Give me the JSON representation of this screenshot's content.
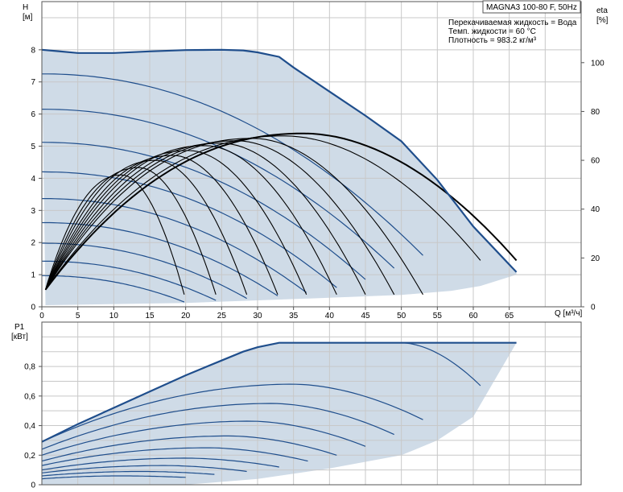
{
  "chart_data": [
    {
      "type": "line",
      "title": "MAGNA3 100-80 F, 50Hz",
      "info_lines": [
        "Перекачиваемая жидкость = Вода",
        "Темп. жидкости = 60 °C",
        "Плотность = 983.2 кг/м³"
      ],
      "ylabel": "H",
      "yunit": "[м]",
      "y2label": "eta",
      "y2unit": "[%]",
      "xlabel": "Q [м³/ч]",
      "xlim": [
        0,
        75
      ],
      "ylim": [
        0,
        9.5
      ],
      "y2lim": [
        0,
        125
      ],
      "xticks": [
        "0",
        "5",
        "10",
        "15",
        "20",
        "25",
        "30",
        "35",
        "40",
        "45",
        "50",
        "55",
        "60",
        "65"
      ],
      "yticks": [
        "0",
        "1",
        "2",
        "3",
        "4",
        "5",
        "6",
        "7",
        "8"
      ],
      "y2ticks": [
        "0",
        "20",
        "40",
        "60",
        "80",
        "100"
      ],
      "grid": true,
      "colors": {
        "curve": "#1f4e8c",
        "envelope": "#1f4e8c",
        "fill": "#cfdbe7",
        "eta": "#000000",
        "grid": "#c8c8c8"
      },
      "envelope_max": {
        "x": [
          0,
          2,
          5,
          10,
          15,
          20,
          25,
          28,
          30,
          33,
          35,
          40,
          45,
          50,
          55,
          60,
          66
        ],
        "y": [
          8.0,
          7.96,
          7.9,
          7.9,
          7.95,
          7.99,
          8.0,
          7.98,
          7.92,
          7.78,
          7.45,
          6.7,
          5.95,
          5.15,
          3.95,
          2.5,
          1.08
        ]
      },
      "envelope_min": {
        "x": [
          0.5,
          20,
          30,
          40,
          50,
          57,
          61,
          66
        ],
        "y": [
          0.05,
          0.12,
          0.2,
          0.28,
          0.37,
          0.5,
          0.65,
          1.0
        ]
      },
      "series": [
        {
          "h0": 7.25,
          "q_end": 53.0,
          "h_end": 1.6
        },
        {
          "h0": 6.15,
          "q_end": 49.0,
          "h_end": 1.2
        },
        {
          "h0": 5.12,
          "q_end": 45.0,
          "h_end": 0.85
        },
        {
          "h0": 4.2,
          "q_end": 41.0,
          "h_end": 0.6
        },
        {
          "h0": 3.37,
          "q_end": 36.8,
          "h_end": 0.44
        },
        {
          "h0": 2.62,
          "q_end": 32.8,
          "h_end": 0.34
        },
        {
          "h0": 1.98,
          "q_end": 28.5,
          "h_end": 0.26
        },
        {
          "h0": 1.42,
          "q_end": 24.2,
          "h_end": 0.2
        },
        {
          "h0": 0.97,
          "q_end": 19.8,
          "h_end": 0.15
        }
      ],
      "eta_curves": [
        {
          "q_end": 66.0,
          "peak": 71
        },
        {
          "q_end": 61.0,
          "peak": 70
        },
        {
          "q_end": 53.0,
          "peak": 69
        },
        {
          "q_end": 49.0,
          "peak": 68
        },
        {
          "q_end": 45.0,
          "peak": 67
        },
        {
          "q_end": 41.0,
          "peak": 66
        },
        {
          "q_end": 36.8,
          "peak": 64
        },
        {
          "q_end": 32.8,
          "peak": 62
        },
        {
          "q_end": 28.5,
          "peak": 60
        },
        {
          "q_end": 24.2,
          "peak": 57
        },
        {
          "q_end": 19.8,
          "peak": 54
        }
      ]
    },
    {
      "type": "line",
      "ylabel": "P1",
      "yunit": "[кВт]",
      "xlim": [
        0,
        75
      ],
      "ylim": [
        0,
        1.1
      ],
      "yticks": [
        "0",
        "0,2",
        "0,4",
        "0,6",
        "0,8"
      ],
      "grid": true,
      "envelope_max": {
        "x": [
          0,
          5,
          10,
          15,
          20,
          25,
          28,
          30,
          33,
          50,
          55,
          66
        ],
        "y": [
          0.29,
          0.41,
          0.52,
          0.63,
          0.74,
          0.84,
          0.9,
          0.93,
          0.96,
          0.96,
          0.96,
          0.96
        ]
      },
      "envelope_min": {
        "x": [
          0,
          10,
          20,
          30,
          40,
          50,
          55,
          60,
          66
        ],
        "y": [
          0.0,
          0.0,
          0.0,
          0.04,
          0.11,
          0.2,
          0.3,
          0.46,
          0.96
        ]
      },
      "series": [
        {
          "p0": 0.96,
          "q_mid": 50.0,
          "p_mid": 0.96,
          "q_end": 61.0,
          "p_end": 0.67
        },
        {
          "p0": 0.29,
          "q_mid": 35.0,
          "p_mid": 0.68,
          "q_end": 53.0,
          "p_end": 0.44
        },
        {
          "p0": 0.24,
          "q_mid": 32.0,
          "p_mid": 0.55,
          "q_end": 49.0,
          "p_end": 0.34
        },
        {
          "p0": 0.2,
          "q_mid": 29.0,
          "p_mid": 0.43,
          "q_end": 45.0,
          "p_end": 0.26
        },
        {
          "p0": 0.16,
          "q_mid": 26.0,
          "p_mid": 0.33,
          "q_end": 41.0,
          "p_end": 0.2
        },
        {
          "p0": 0.13,
          "q_mid": 23.0,
          "p_mid": 0.25,
          "q_end": 37.0,
          "p_end": 0.16
        },
        {
          "p0": 0.1,
          "q_mid": 20.0,
          "p_mid": 0.18,
          "q_end": 33.0,
          "p_end": 0.12
        },
        {
          "p0": 0.08,
          "q_mid": 17.0,
          "p_mid": 0.13,
          "q_end": 28.5,
          "p_end": 0.09
        },
        {
          "p0": 0.06,
          "q_mid": 14.0,
          "p_mid": 0.09,
          "q_end": 24.0,
          "p_end": 0.07
        },
        {
          "p0": 0.04,
          "q_mid": 11.0,
          "p_mid": 0.06,
          "q_end": 20.0,
          "p_end": 0.05
        }
      ]
    }
  ]
}
